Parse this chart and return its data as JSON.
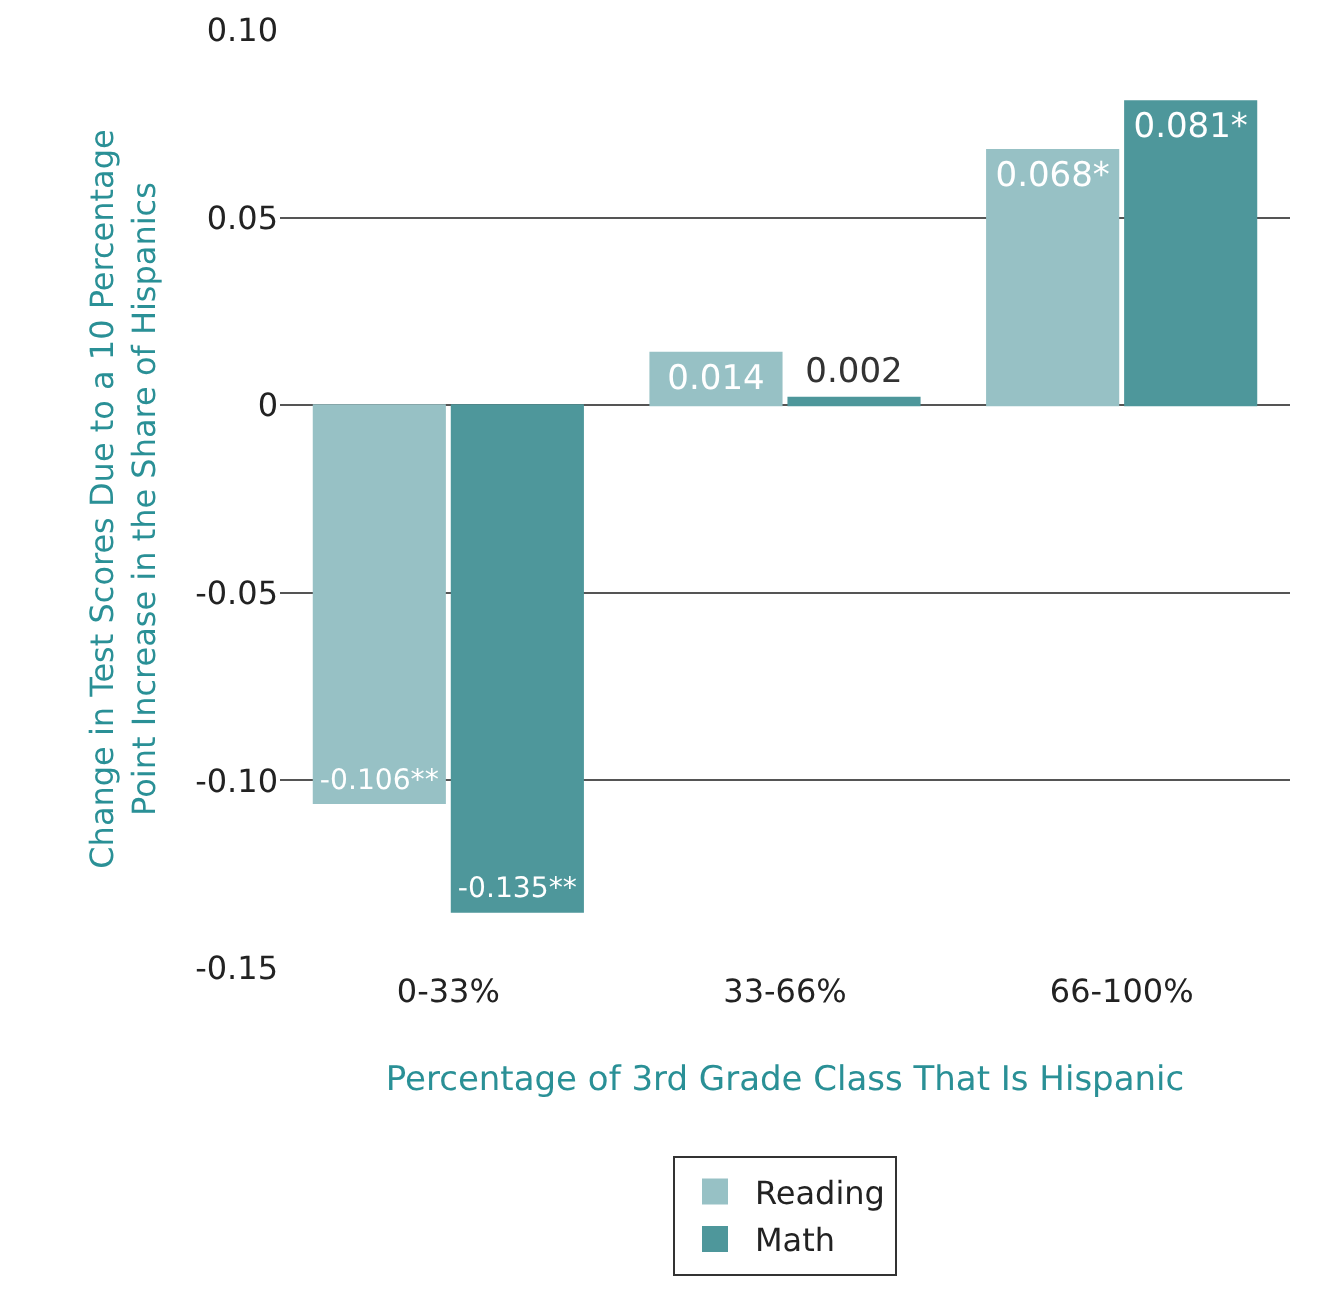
{
  "chart_data": {
    "type": "bar",
    "xlabel": "Percentage of 3rd Grade Class That Is Hispanic",
    "ylabel": "Change in Test Scores Due to a 10 Percentage Point Increase in the Share of Hispanics",
    "categories": [
      "0-33%",
      "33-66%",
      "66-100%"
    ],
    "series": [
      {
        "name": "Reading",
        "color": "#97c1c5",
        "values": [
          -0.106,
          0.014,
          0.068
        ],
        "value_labels": [
          "-0.106**",
          "0.014",
          "0.068*"
        ]
      },
      {
        "name": "Math",
        "color": "#4e979b",
        "values": [
          -0.135,
          0.002,
          0.081
        ],
        "value_labels": [
          "-0.135**",
          "0.002",
          "0.081*"
        ]
      }
    ],
    "ylim": [
      -0.15,
      0.1
    ],
    "yticks": [
      {
        "value": -0.15,
        "label": "-0.15"
      },
      {
        "value": -0.1,
        "label": "-0.10"
      },
      {
        "value": -0.05,
        "label": "-0.05"
      },
      0,
      {
        "value": 0.05,
        "label": "0.05"
      },
      {
        "value": 0.1,
        "label": "0.10"
      }
    ],
    "grid": "y",
    "legend": "bottom"
  }
}
